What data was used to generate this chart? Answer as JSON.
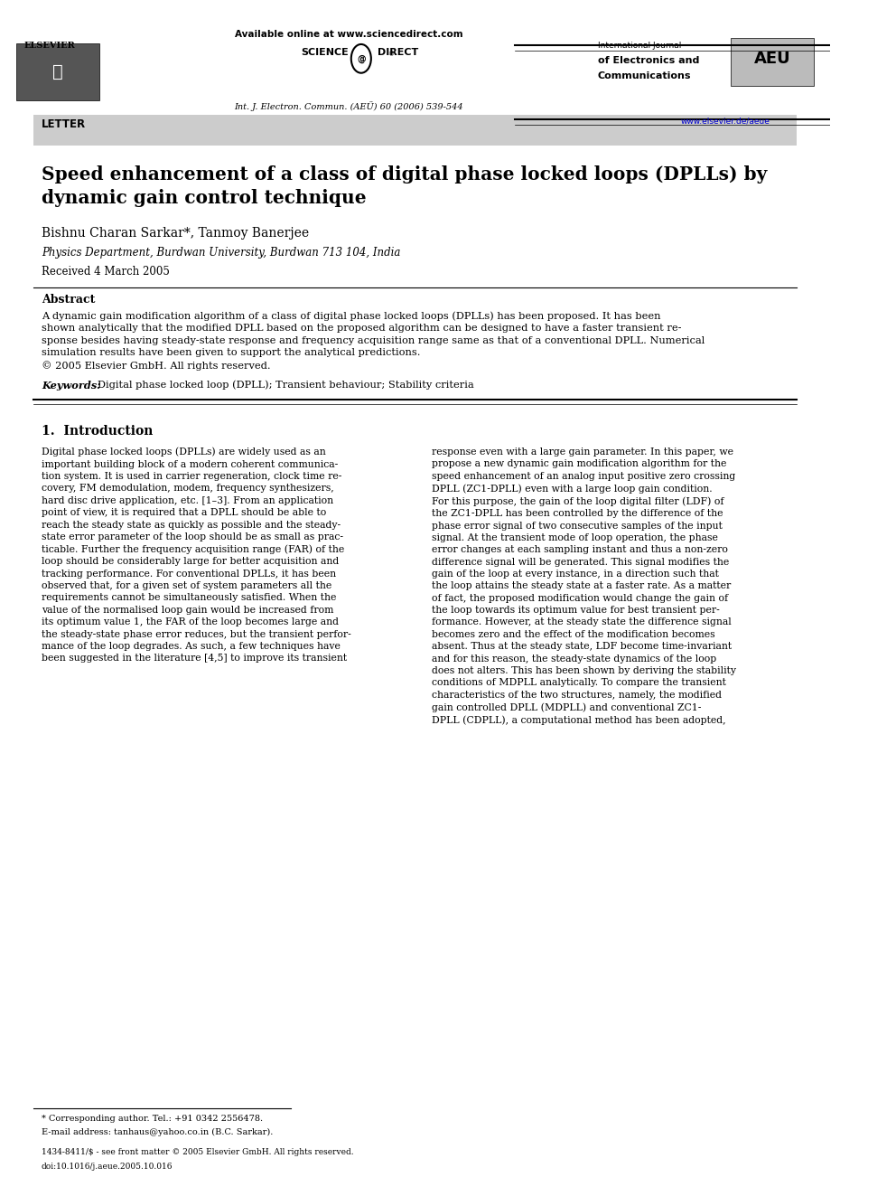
{
  "page_width": 9.92,
  "page_height": 13.23,
  "bg_color": "#ffffff",
  "header": {
    "available_online_text": "Available online at www.sciencedirect.com",
    "sciencedirect_text": "SCIENCE DIRECT®",
    "journal_info": "Int. J. Electron. Commun. (AEÜ) 60 (2006) 539-544",
    "journal_name_line1": "International Journal",
    "journal_name_line2": "of Electronics and",
    "journal_name_line3": "Communications",
    "journal_abbr": "AEU",
    "website": "www.elsevier.de/aeue",
    "elsevier_text": "ELSEVIER"
  },
  "letter_banner": {
    "text": "LETTER",
    "bg_color": "#cccccc"
  },
  "title": "Speed enhancement of a class of digital phase locked loops (DPLLs) by\ndynamic gain control technique",
  "authors": "Bishnu Charan Sarkar*, Tanmoy Banerjee",
  "affiliation": "Physics Department, Burdwan University, Burdwan 713 104, India",
  "received": "Received 4 March 2005",
  "abstract_title": "Abstract",
  "abstract_text": "A dynamic gain modification algorithm of a class of digital phase locked loops (DPLLs) has been proposed. It has been shown analytically that the modified DPLL based on the proposed algorithm can be designed to have a faster transient response besides having steady-state response and frequency acquisition range same as that of a conventional DPLL. Numerical simulation results have been given to support the analytical predictions.\n© 2005 Elsevier GmbH. All rights reserved.",
  "keywords_label": "Keywords:",
  "keywords_text": "Digital phase locked loop (DPLL); Transient behaviour; Stability criteria",
  "section1_title": "1.  Introduction",
  "col1_text": "Digital phase locked loops (DPLLs) are widely used as an important building block of a modern coherent communication system. It is used in carrier regeneration, clock time recovery, FM demodulation, modem, frequency synthesizers, hard disc drive application, etc. [1–3]. From an application point of view, it is required that a DPLL should be able to reach the steady state as quickly as possible and the steady-state error parameter of the loop should be as small as practicable. Further the frequency acquisition range (FAR) of the loop should be considerably large for better acquisition and tracking performance. For conventional DPLLs, it has been observed that, for a given set of system parameters all the requirements cannot be simultaneously satisfied. When the value of the normalised loop gain would be increased from its optimum value 1, the FAR of the loop becomes large and the steady-state phase error reduces, but the transient performance of the loop degrades. As such, a few techniques have been suggested in the literature [4,5] to improve its transient",
  "col2_text": "response even with a large gain parameter. In this paper, we propose a new dynamic gain modification algorithm for the speed enhancement of an analog input positive zero crossing DPLL (ZC1-DPLL) even with a large loop gain condition. For this purpose, the gain of the loop digital filter (LDF) of the ZC1-DPLL has been controlled by the difference of the phase error signal of two consecutive samples of the input signal. At the transient mode of loop operation, the phase error changes at each sampling instant and thus a non-zero difference signal will be generated. This signal modifies the gain of the loop at every instance, in a direction such that the loop attains the steady state at a faster rate. As a matter of fact, the proposed modification would change the gain of the loop towards its optimum value for best transient performance. However, at the steady state the difference signal becomes zero and the effect of the modification becomes absent. Thus at the steady state, LDF become time-invariant and for this reason, the steady-state dynamics of the loop does not alters. This has been shown by deriving the stability conditions of MDPLL analytically. To compare the transient characteristics of the two structures, namely, the modified gain controlled DPLL (MDPLL) and conventional ZC1-DPLL (CDPLL), a computational method has been adopted,",
  "footnote_star": "* Corresponding author. Tel.: +91 0342 2556478.",
  "footnote_email": "E-mail address: tanhaus@yahoo.co.in (B.C. Sarkar).",
  "footer_issn": "1434-8411/$ - see front matter © 2005 Elsevier GmbH. All rights reserved.",
  "footer_doi": "doi:10.1016/j.aeue.2005.10.016"
}
